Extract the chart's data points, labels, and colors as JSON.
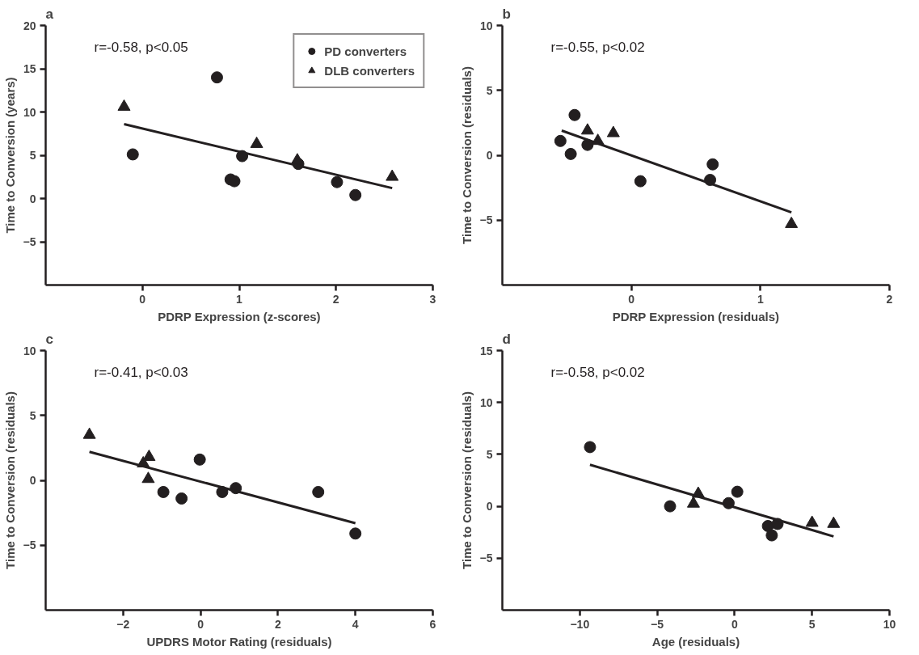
{
  "chart_data": [
    {
      "type": "scatter",
      "title": "a",
      "xlabel": "PDRP Expression (z-scores)",
      "ylabel": "Time to Conversion (years)",
      "annotations": [
        "r=-0.58, p<0.05"
      ],
      "xlim": [
        -1,
        3
      ],
      "xticks": [
        0,
        1,
        2,
        3
      ],
      "ylim": [
        -10,
        20
      ],
      "yticks": [
        -5,
        0,
        5,
        10,
        15,
        20
      ],
      "grid": false,
      "legend": "top right",
      "series": [
        {
          "name": "PD converters",
          "marker": "circle",
          "color": "#231f20",
          "x": [
            -0.1,
            0.77,
            0.91,
            0.95,
            1.03,
            1.61,
            2.01,
            2.2
          ],
          "values": [
            5.1,
            14.0,
            2.2,
            2.0,
            4.9,
            4.0,
            1.9,
            0.4
          ]
        },
        {
          "name": "DLB converters",
          "marker": "triangle",
          "color": "#231f20",
          "x": [
            -0.19,
            1.18,
            1.6,
            2.58
          ],
          "values": [
            10.6,
            6.3,
            4.4,
            2.5
          ]
        },
        {
          "type": "line",
          "color": "#231f20",
          "x": [
            -0.19,
            2.58
          ],
          "values": [
            8.6,
            1.2
          ]
        }
      ]
    },
    {
      "type": "scatter",
      "title": "b",
      "xlabel": "PDRP Expression (residuals)",
      "ylabel": "Time to Conversion (residuals)",
      "annotations": [
        "r=-0.55, p<0.02"
      ],
      "xlim": [
        -1,
        2
      ],
      "xticks": [
        0,
        1,
        2
      ],
      "ylim": [
        -10,
        10
      ],
      "yticks": [
        -5,
        0,
        5,
        10
      ],
      "grid": false,
      "series": [
        {
          "marker": "circle",
          "color": "#231f20",
          "x": [
            -0.55,
            -0.47,
            -0.44,
            -0.34,
            0.07,
            0.61,
            0.63
          ],
          "values": [
            1.1,
            0.1,
            3.1,
            0.8,
            -2.0,
            -1.9,
            -0.7
          ]
        },
        {
          "marker": "triangle",
          "color": "#231f20",
          "x": [
            -0.34,
            -0.26,
            -0.14,
            1.24
          ],
          "values": [
            1.9,
            1.1,
            1.7,
            -5.3
          ]
        },
        {
          "type": "line",
          "color": "#231f20",
          "x": [
            -0.54,
            1.24
          ],
          "values": [
            1.9,
            -4.4
          ]
        }
      ]
    },
    {
      "type": "scatter",
      "title": "c",
      "xlabel": "UPDRS Motor Rating (residuals)",
      "ylabel": "Time to Conversion (residuals)",
      "annotations": [
        "r=-0.41, p<0.03"
      ],
      "xlim": [
        -4,
        6
      ],
      "xticks": [
        -2,
        0,
        2,
        4,
        6
      ],
      "ylim": [
        -10,
        10
      ],
      "yticks": [
        -5,
        0,
        5,
        10
      ],
      "grid": false,
      "series": [
        {
          "marker": "circle",
          "color": "#231f20",
          "x": [
            -0.96,
            -0.49,
            -0.02,
            0.56,
            0.91,
            3.04,
            4.0
          ],
          "values": [
            -0.9,
            -1.4,
            1.6,
            -0.9,
            -0.6,
            -0.9,
            -4.1
          ]
        },
        {
          "marker": "triangle",
          "color": "#231f20",
          "x": [
            -2.87,
            -1.33,
            -1.48,
            -1.35
          ],
          "values": [
            3.5,
            1.8,
            1.3,
            0.1
          ]
        },
        {
          "type": "line",
          "color": "#231f20",
          "x": [
            -2.87,
            4.0
          ],
          "values": [
            2.2,
            -3.3
          ]
        }
      ]
    },
    {
      "type": "scatter",
      "title": "d",
      "xlabel": "Age (residuals)",
      "ylabel": "Time to Conversion (residuals)",
      "annotations": [
        "r=-0.58, p<0.02"
      ],
      "xlim": [
        -15,
        10
      ],
      "xticks": [
        -10,
        -5,
        0,
        5,
        10
      ],
      "ylim": [
        -10,
        15
      ],
      "yticks": [
        -5,
        0,
        5,
        10,
        15
      ],
      "grid": false,
      "series": [
        {
          "marker": "circle",
          "color": "#231f20",
          "x": [
            -9.34,
            -4.17,
            -0.39,
            0.17,
            2.15,
            2.77,
            2.4
          ],
          "values": [
            5.7,
            0.0,
            0.3,
            1.4,
            -1.9,
            -1.7,
            -2.8
          ]
        },
        {
          "marker": "triangle",
          "color": "#231f20",
          "x": [
            -2.66,
            -2.35,
            5.0,
            6.39
          ],
          "values": [
            0.25,
            1.2,
            -1.6,
            -1.7
          ]
        },
        {
          "type": "line",
          "color": "#231f20",
          "x": [
            -9.34,
            6.39
          ],
          "values": [
            4.0,
            -2.9
          ]
        }
      ]
    }
  ]
}
